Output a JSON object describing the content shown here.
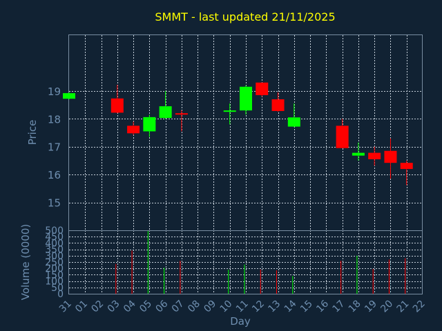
{
  "chart_data": {
    "title": "SMMT - last updated 21/11/2025",
    "xlabel": "Day",
    "price_panel": {
      "type": "candlestick",
      "ylabel": "Price",
      "yticks": [
        15,
        16,
        17,
        18,
        19
      ],
      "ylim": [
        14,
        21
      ],
      "grid": true,
      "up_color": "#00ff00",
      "down_color": "#ff0000"
    },
    "volume_panel": {
      "type": "bar",
      "ylabel": "Volume (0000)",
      "yticks": [
        0,
        50,
        100,
        150,
        200,
        250,
        300,
        350,
        400,
        450,
        500
      ],
      "ylim": [
        0,
        500
      ],
      "grid": true
    },
    "xticks": [
      "31",
      "01",
      "02",
      "03",
      "04",
      "05",
      "06",
      "07",
      "08",
      "09",
      "10",
      "11",
      "12",
      "13",
      "14",
      "15",
      "16",
      "17",
      "18",
      "19",
      "20",
      "21",
      "22"
    ],
    "candles": [
      {
        "day": "31",
        "open": 18.72,
        "close": 18.92,
        "high": 18.95,
        "low": 18.7,
        "volume": 0
      },
      {
        "day": "03",
        "open": 18.73,
        "close": 18.22,
        "high": 19.22,
        "low": 18.2,
        "volume": 235
      },
      {
        "day": "04",
        "open": 17.75,
        "close": 17.48,
        "high": 17.9,
        "low": 17.42,
        "volume": 340
      },
      {
        "day": "05",
        "open": 17.55,
        "close": 18.06,
        "high": 18.15,
        "low": 17.35,
        "volume": 495
      },
      {
        "day": "06",
        "open": 18.03,
        "close": 18.45,
        "high": 19.0,
        "low": 18.0,
        "volume": 205
      },
      {
        "day": "07",
        "open": 18.2,
        "close": 18.17,
        "high": 18.3,
        "low": 17.55,
        "volume": 260
      },
      {
        "day": "10",
        "open": 18.27,
        "close": 18.3,
        "high": 18.55,
        "low": 17.8,
        "volume": 190
      },
      {
        "day": "11",
        "open": 18.3,
        "close": 19.15,
        "high": 19.2,
        "low": 18.15,
        "volume": 230
      },
      {
        "day": "12",
        "open": 19.3,
        "close": 18.85,
        "high": 19.3,
        "low": 18.8,
        "volume": 190
      },
      {
        "day": "13",
        "open": 18.7,
        "close": 18.28,
        "high": 18.95,
        "low": 18.25,
        "volume": 185
      },
      {
        "day": "14",
        "open": 17.72,
        "close": 18.05,
        "high": 18.55,
        "low": 17.7,
        "volume": 140
      },
      {
        "day": "17",
        "open": 17.75,
        "close": 16.95,
        "high": 18.0,
        "low": 16.95,
        "volume": 260
      },
      {
        "day": "18",
        "open": 16.68,
        "close": 16.78,
        "high": 17.15,
        "low": 16.5,
        "volume": 300
      },
      {
        "day": "19",
        "open": 16.78,
        "close": 16.55,
        "high": 17.0,
        "low": 16.32,
        "volume": 195
      },
      {
        "day": "20",
        "open": 16.85,
        "close": 16.42,
        "high": 17.3,
        "low": 15.85,
        "volume": 270
      },
      {
        "day": "21",
        "open": 16.42,
        "close": 16.2,
        "high": 16.5,
        "low": 15.62,
        "volume": 280
      }
    ]
  }
}
